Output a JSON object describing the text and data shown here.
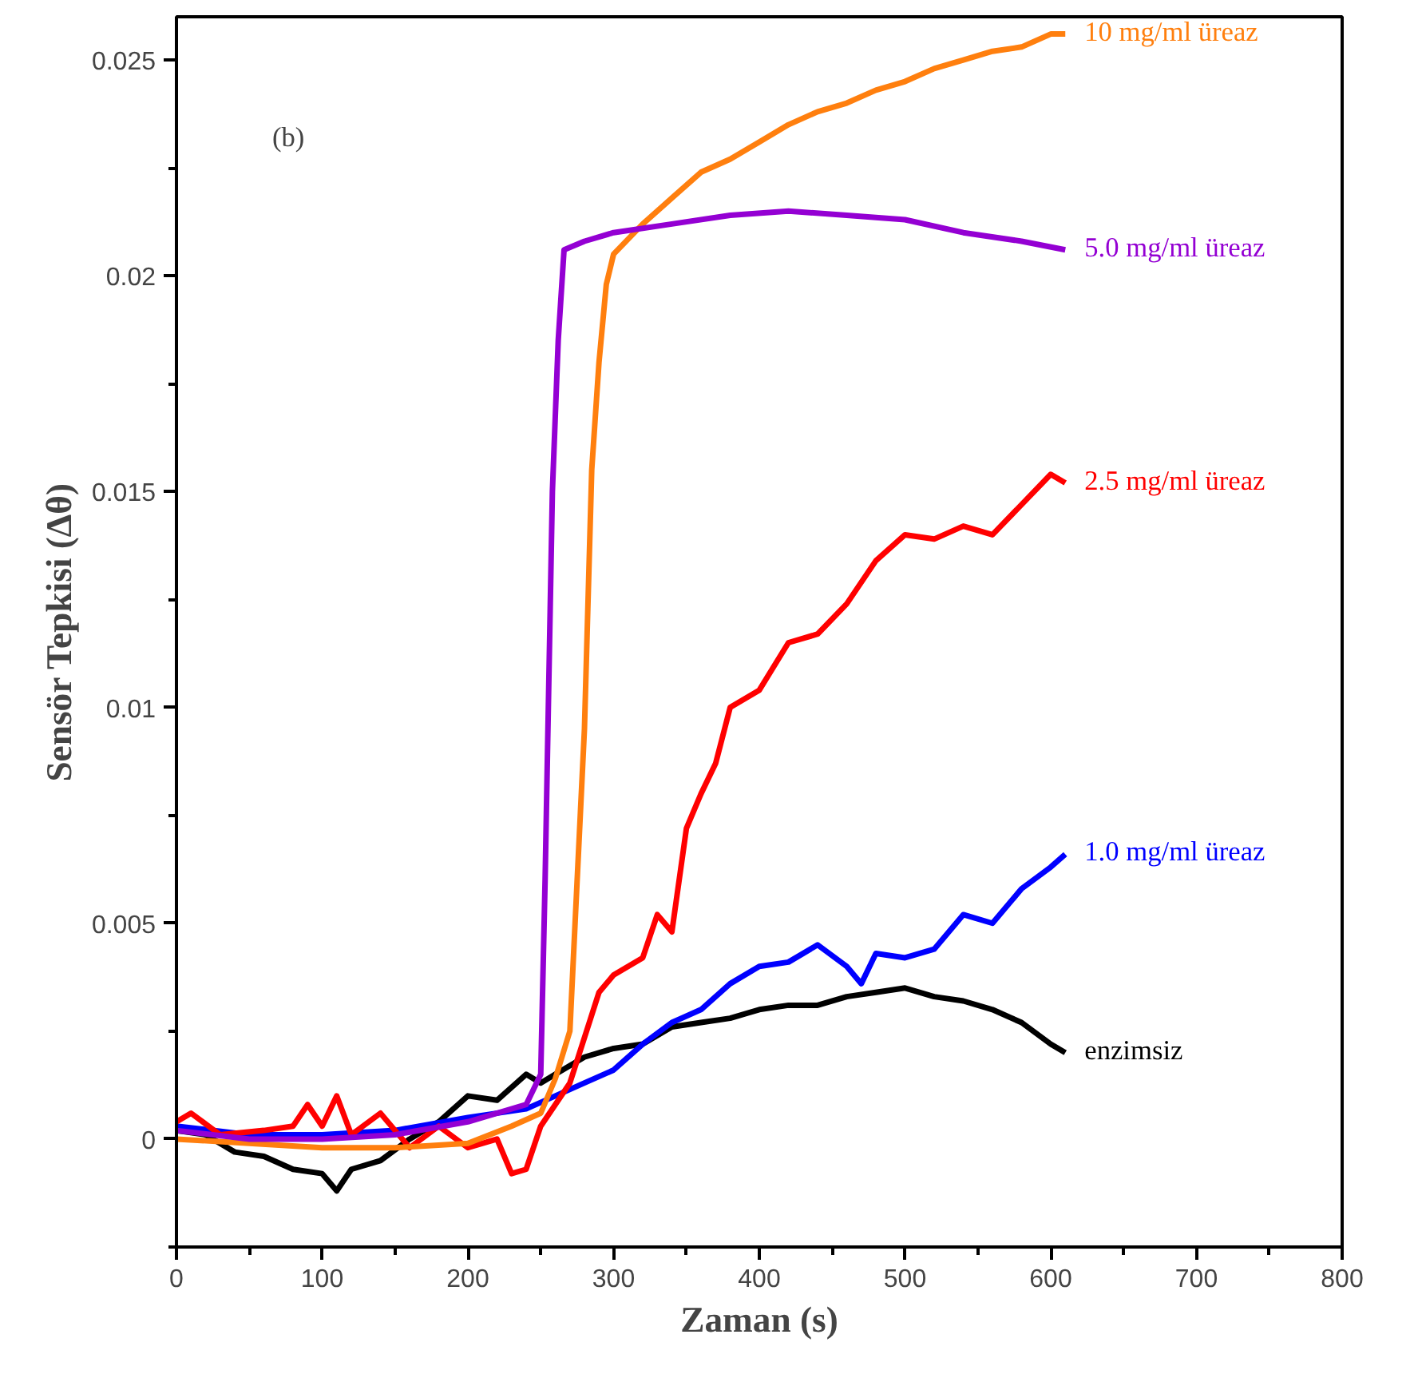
{
  "chart_data": {
    "type": "line",
    "xlabel": "Zaman (s)",
    "ylabel": "Sensör Tepkisi (Δθ)",
    "xlim": [
      0,
      800
    ],
    "ylim": [
      -0.0025,
      0.026
    ],
    "xticks": [
      0,
      100,
      200,
      300,
      400,
      500,
      600,
      700,
      800
    ],
    "yticks": [
      0,
      0.005,
      0.01,
      0.015,
      0.02,
      0.025
    ],
    "grid": false,
    "legend": false,
    "marker": "none",
    "line_style": "solid",
    "annotations": [
      "(b)"
    ],
    "series": [
      {
        "name": "enzimsiz",
        "color": "#000000",
        "x": [
          0,
          20,
          40,
          60,
          80,
          100,
          110,
          120,
          140,
          160,
          180,
          200,
          220,
          240,
          250,
          260,
          280,
          300,
          320,
          340,
          360,
          380,
          400,
          420,
          440,
          460,
          480,
          500,
          520,
          540,
          560,
          580,
          600,
          610
        ],
        "values": [
          0.0002,
          0.0001,
          -0.0003,
          -0.0004,
          -0.0007,
          -0.0008,
          -0.0012,
          -0.0007,
          -0.0005,
          0.0,
          0.0004,
          0.001,
          0.0009,
          0.0015,
          0.0013,
          0.0015,
          0.0019,
          0.0021,
          0.0022,
          0.0026,
          0.0027,
          0.0028,
          0.003,
          0.0031,
          0.0031,
          0.0033,
          0.0034,
          0.0035,
          0.0033,
          0.0032,
          0.003,
          0.0027,
          0.0022,
          0.002
        ]
      },
      {
        "name": "1.0 mg/ml üreaz",
        "color": "#0000ff",
        "x": [
          0,
          50,
          100,
          150,
          200,
          240,
          260,
          280,
          300,
          320,
          340,
          360,
          380,
          400,
          420,
          440,
          460,
          470,
          480,
          500,
          520,
          540,
          560,
          580,
          600,
          610
        ],
        "values": [
          0.0003,
          0.0001,
          0.0001,
          0.0002,
          0.0005,
          0.0007,
          0.001,
          0.0013,
          0.0016,
          0.0022,
          0.0027,
          0.003,
          0.0036,
          0.004,
          0.0041,
          0.0045,
          0.004,
          0.0036,
          0.0043,
          0.0042,
          0.0044,
          0.0052,
          0.005,
          0.0058,
          0.0063,
          0.0066
        ]
      },
      {
        "name": "2.5 mg/ml üreaz",
        "color": "#ff0000",
        "x": [
          0,
          10,
          30,
          60,
          80,
          90,
          100,
          110,
          120,
          140,
          160,
          180,
          200,
          220,
          230,
          240,
          250,
          270,
          290,
          300,
          320,
          330,
          340,
          350,
          360,
          370,
          380,
          400,
          420,
          440,
          460,
          480,
          500,
          520,
          540,
          560,
          580,
          600,
          610
        ],
        "values": [
          0.0004,
          0.0006,
          0.0001,
          0.0002,
          0.0003,
          0.0008,
          0.0003,
          0.001,
          0.0001,
          0.0006,
          -0.0002,
          0.0003,
          -0.0002,
          0.0,
          -0.0008,
          -0.0007,
          0.0003,
          0.0013,
          0.0034,
          0.0038,
          0.0042,
          0.0052,
          0.0048,
          0.0072,
          0.008,
          0.0087,
          0.01,
          0.0104,
          0.0115,
          0.0117,
          0.0124,
          0.0134,
          0.014,
          0.0139,
          0.0142,
          0.014,
          0.0147,
          0.0154,
          0.0152
        ]
      },
      {
        "name": "10 mg/ml üreaz",
        "color": "#ff7f0e",
        "x": [
          0,
          50,
          100,
          150,
          200,
          230,
          250,
          260,
          270,
          280,
          285,
          290,
          295,
          300,
          320,
          340,
          360,
          380,
          400,
          420,
          440,
          460,
          480,
          500,
          520,
          540,
          560,
          580,
          600,
          610
        ],
        "values": [
          0.0,
          -0.0001,
          -0.0002,
          -0.0002,
          -0.0001,
          0.0003,
          0.0006,
          0.0014,
          0.0025,
          0.0095,
          0.0155,
          0.018,
          0.0198,
          0.0205,
          0.0212,
          0.0218,
          0.0224,
          0.0227,
          0.0231,
          0.0235,
          0.0238,
          0.024,
          0.0243,
          0.0245,
          0.0248,
          0.025,
          0.0252,
          0.0253,
          0.0256,
          0.0256
        ]
      },
      {
        "name": "5.0 mg/ml üreaz",
        "color": "#9400d3",
        "x": [
          0,
          50,
          100,
          150,
          200,
          240,
          250,
          253,
          258,
          262,
          266,
          280,
          300,
          340,
          380,
          420,
          460,
          500,
          540,
          580,
          610
        ],
        "values": [
          0.0002,
          0.0,
          0.0,
          0.0001,
          0.0004,
          0.0008,
          0.0015,
          0.006,
          0.015,
          0.0185,
          0.0206,
          0.0208,
          0.021,
          0.0212,
          0.0214,
          0.0215,
          0.0214,
          0.0213,
          0.021,
          0.0208,
          0.0206
        ]
      }
    ]
  }
}
